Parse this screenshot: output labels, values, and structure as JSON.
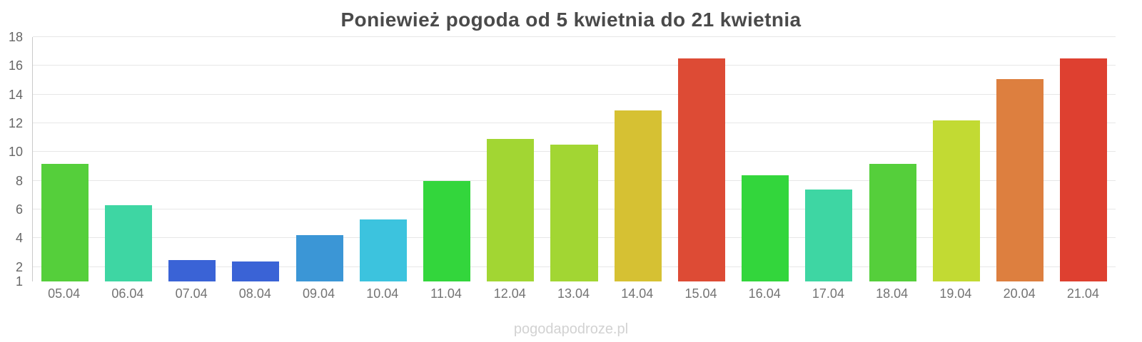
{
  "watermark": "pogodapodroze.pl",
  "chart_data": {
    "type": "bar",
    "title": "Poniewież pogoda od 5 kwietnia do 21 kwietnia",
    "xlabel": "",
    "ylabel": "",
    "ylim": [
      1,
      18
    ],
    "yticks": [
      1,
      2,
      4,
      6,
      8,
      10,
      12,
      14,
      16,
      18
    ],
    "grid": "horizontal",
    "legend": "none",
    "categories": [
      "05.04",
      "06.04",
      "07.04",
      "08.04",
      "09.04",
      "10.04",
      "11.04",
      "12.04",
      "13.04",
      "14.04",
      "15.04",
      "16.04",
      "17.04",
      "18.04",
      "19.04",
      "20.04",
      "21.04"
    ],
    "values": [
      9.2,
      6.3,
      2.5,
      2.4,
      4.2,
      5.3,
      8.0,
      10.9,
      10.5,
      12.9,
      16.5,
      8.4,
      7.4,
      9.2,
      12.2,
      15.1,
      16.5
    ],
    "colors": [
      "#55cf3b",
      "#3ed6a3",
      "#3a63d6",
      "#3a63d6",
      "#3b96d6",
      "#3cc3de",
      "#33d63c",
      "#a2d633",
      "#a2d633",
      "#d6c133",
      "#dd4b35",
      "#33d63c",
      "#3ed6a3",
      "#55cf3b",
      "#c2da33",
      "#dd7f3f",
      "#de4030"
    ]
  }
}
